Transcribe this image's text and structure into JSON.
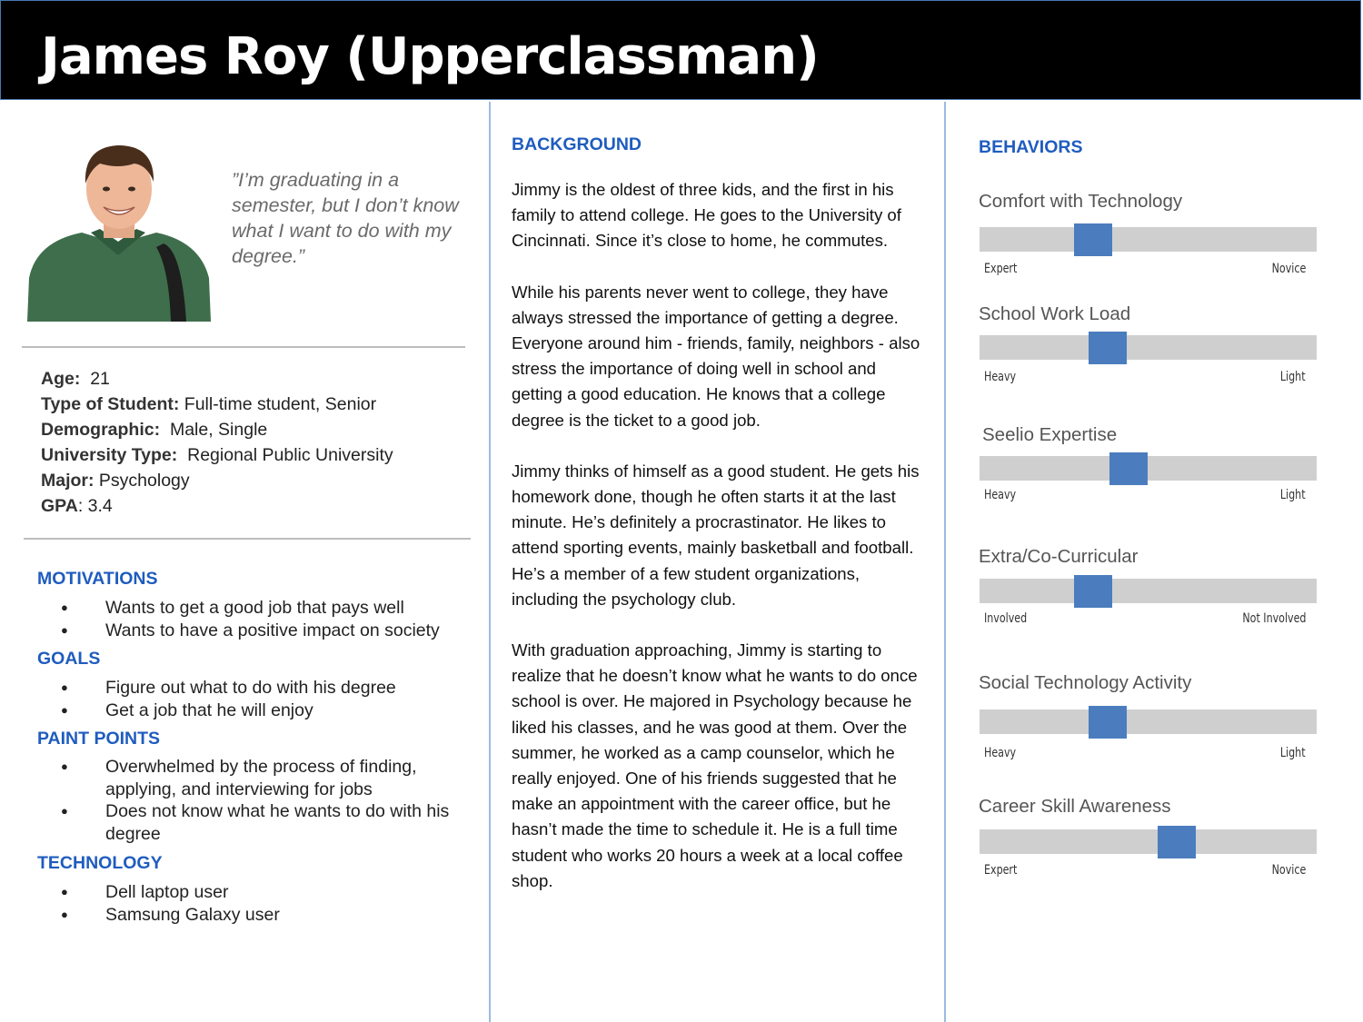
{
  "title": "James Roy (Upperclassman)",
  "quote": "”I’m graduating in a semester, but I don’t know what I want to do with my degree.”",
  "facts": [
    {
      "label": "Age:",
      "value": "21"
    },
    {
      "label": "Type of Student:",
      "value": "Full-time student, Senior"
    },
    {
      "label": "Demographic:",
      "value": "Male, Single"
    },
    {
      "label": "University Type:",
      "value": "Regional Public University"
    },
    {
      "label": "Major:",
      "value": "Psychology"
    },
    {
      "label": "GPA",
      "value": ": 3.4"
    }
  ],
  "motivations": {
    "title": "MOTIVATIONS",
    "items": [
      "Wants to get a good job that pays well",
      "Wants to have a positive impact on society"
    ]
  },
  "goals": {
    "title": "GOALS",
    "items": [
      "Figure out what to do with his degree",
      "Get a job that he will enjoy"
    ]
  },
  "pain_points": {
    "title": "PAINT POINTS",
    "items": [
      "Overwhelmed by the process of finding, applying, and interviewing for jobs",
      "Does not know what he wants to do with his degree"
    ]
  },
  "technology": {
    "title": "TECHNOLOGY",
    "items": [
      "Dell laptop user",
      "Samsung Galaxy user"
    ]
  },
  "background": {
    "title": "BACKGROUND",
    "paragraphs": [
      "Jimmy is the oldest of three kids, and the first in his family to attend college. He goes to the University of Cincinnati. Since it’s close to home, he commutes.",
      "While his parents never went to college, they have always stressed the importance of getting a degree. Everyone around him - friends, family, neighbors - also stress the importance of doing well in school and getting a good education. He knows that a college degree is the ticket to a good job.",
      "Jimmy thinks of himself as a good student. He gets his homework done, though he often starts it at the last minute. He’s definitely a procrastinator. He likes to attend sporting events, mainly basketball and football. He’s a member of a few student organizations, including the psychology club.",
      "With graduation approaching, Jimmy is starting to realize that he doesn’t know what he wants to do once school is over. He majored in Psychology because he liked his classes, and he was good at them. Over the summer, he worked as a camp counselor, which he really enjoyed. One of his friends suggested that he make an appointment with the career office, but he hasn’t made the time to schedule it. He is a full time student who works 20 hours a week at a local coffee shop."
    ]
  },
  "behaviors": {
    "title": "BEHAVIORS",
    "scales": [
      {
        "label": "Comfort with Technology",
        "left": "Expert",
        "right": "Novice",
        "level": 0.33
      },
      {
        "label": "School Work Load",
        "left": "Heavy",
        "right": "Light",
        "level": 0.38
      },
      {
        "label": "Seelio Expertise",
        "left": "Heavy",
        "right": "Light",
        "level": 0.45
      },
      {
        "label": "Extra/Co-Curricular",
        "left": "Involved",
        "right": "Not Involved",
        "level": 0.33
      },
      {
        "label": "Social Technology Activity",
        "left": "Heavy",
        "right": "Light",
        "level": 0.38
      },
      {
        "label": "Career Skill Awareness",
        "left": "Expert",
        "right": "Novice",
        "level": 0.61
      }
    ]
  },
  "colors": {
    "accent": "#1f5cbf",
    "knob": "#4b7dbe",
    "track": "#cfcfcf",
    "header": "#000000"
  }
}
